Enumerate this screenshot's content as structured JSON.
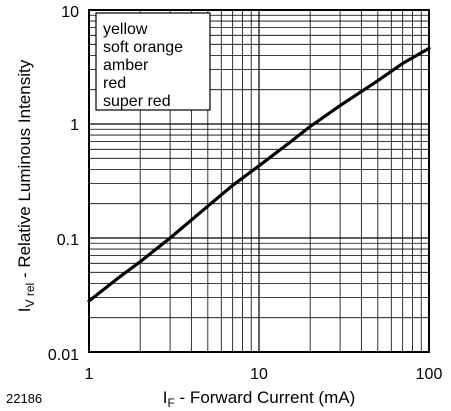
{
  "figure_id": "22186",
  "chart_data": {
    "type": "line",
    "x_scale": "log",
    "y_scale": "log",
    "xlim": [
      1,
      100
    ],
    "ylim": [
      0.01,
      10
    ],
    "grid": true,
    "x_ticks": [
      "1",
      "10",
      "100"
    ],
    "y_ticks": [
      "0.01",
      "0.1",
      "1",
      "10"
    ],
    "xlabel": {
      "main": "I",
      "sub": "F",
      "rest": " - Forward Current (mA)"
    },
    "ylabel": {
      "main": "I",
      "sub": "V rel",
      "rest": " - Relative Luminous Intensity"
    },
    "legend_position": "top-left",
    "legend_entries": [
      "yellow",
      "soft orange",
      "amber",
      "red",
      "super red"
    ],
    "series": [
      {
        "x": [
          1,
          1.5,
          2,
          3,
          5,
          7,
          10,
          15,
          20,
          30,
          50,
          70,
          100
        ],
        "y": [
          0.028,
          0.045,
          0.062,
          0.1,
          0.19,
          0.29,
          0.43,
          0.68,
          0.95,
          1.45,
          2.4,
          3.4,
          4.6
        ]
      }
    ]
  }
}
